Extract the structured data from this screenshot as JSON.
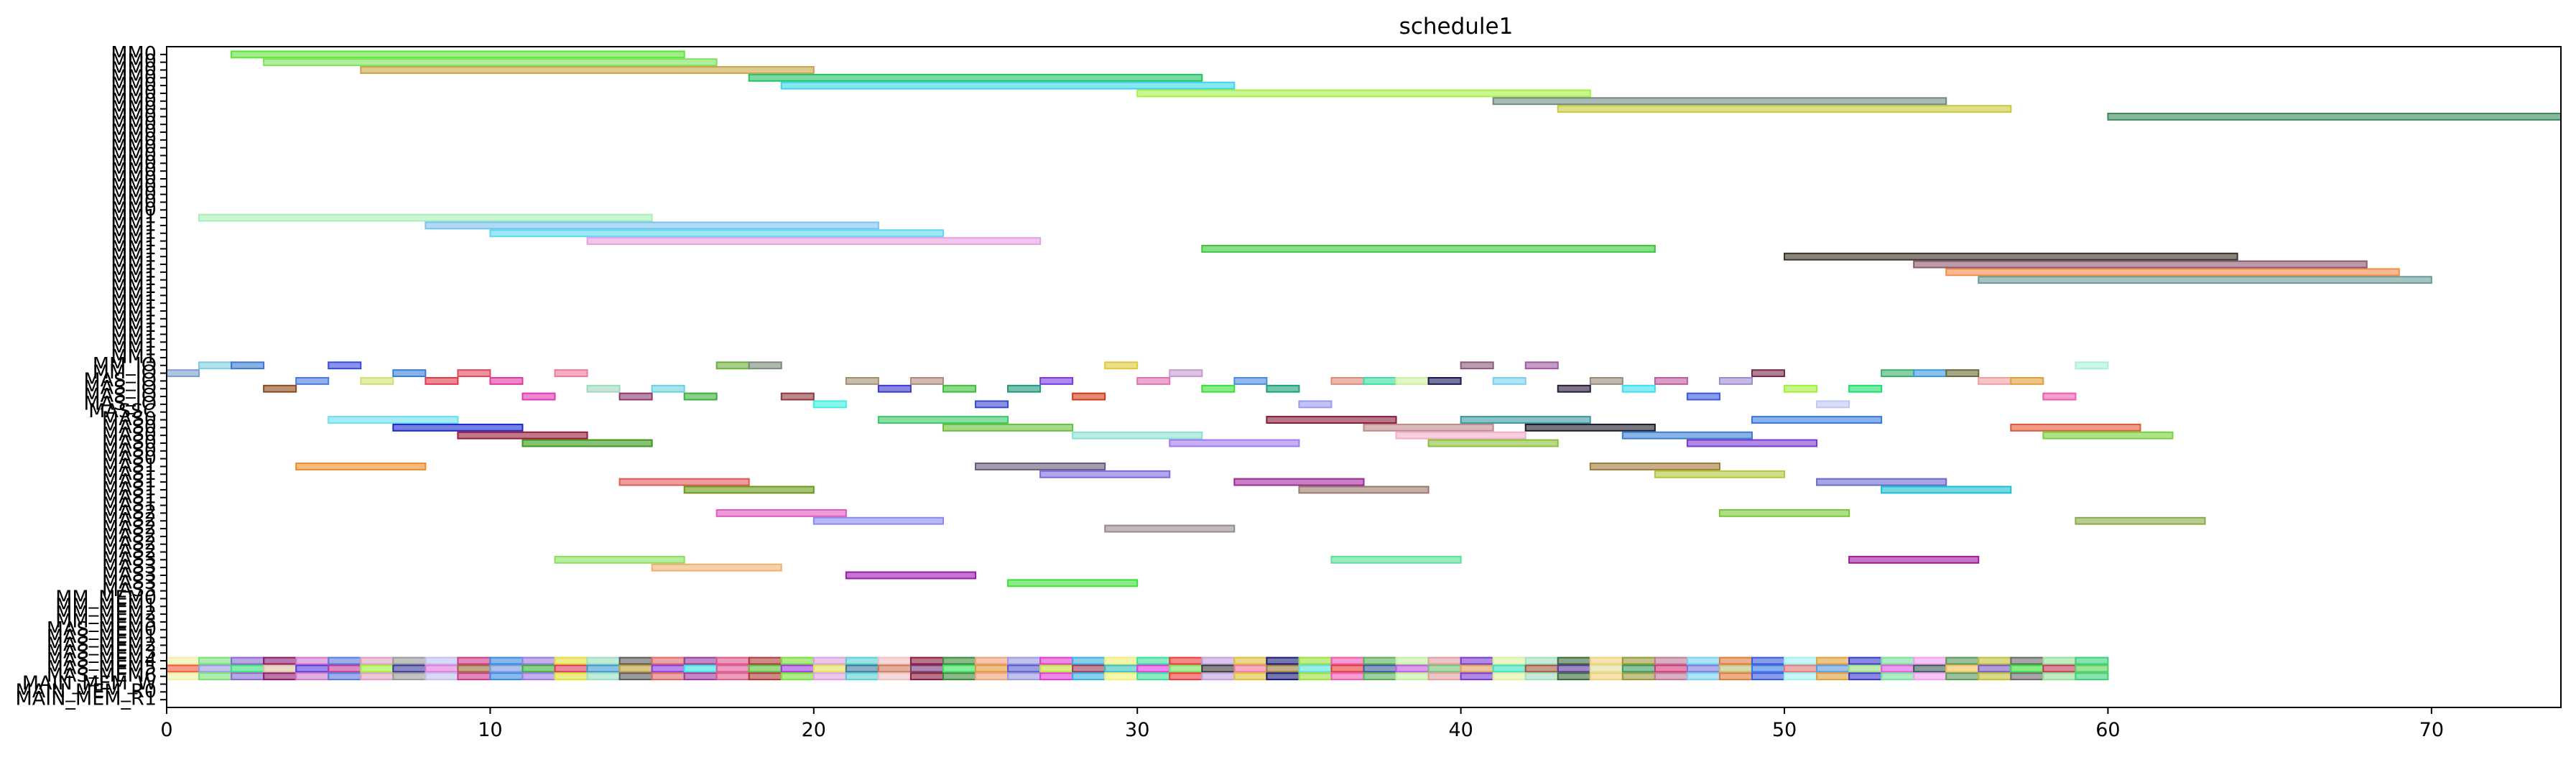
{
  "chart_data": {
    "type": "gantt",
    "title": "schedule1",
    "xlim": [
      0,
      74
    ],
    "xticks": [
      0,
      10,
      20,
      30,
      40,
      50,
      60,
      70
    ],
    "grid": false,
    "rows": [
      "MM0",
      "MM0",
      "MM0",
      "MM0",
      "MM0",
      "MM0",
      "MM0",
      "MM0",
      "MM0",
      "MM0",
      "MM0",
      "MM0",
      "MM0",
      "MM0",
      "MM0",
      "MM0",
      "MM0",
      "MM0",
      "MM0",
      "MM0",
      "MM0",
      "MM1",
      "MM1",
      "MM1",
      "MM1",
      "MM1",
      "MM1",
      "MM1",
      "MM1",
      "MM1",
      "MM1",
      "MM1",
      "MM1",
      "MM1",
      "MM1",
      "MM1",
      "MM1",
      "MM1",
      "MM1",
      "MM1",
      "MM_IO",
      "MM_IO",
      "MAS_IO",
      "MAS_IO",
      "MAS_IO",
      "MAS_IO",
      "MASSC",
      "MAS0",
      "MAS0",
      "MAS0",
      "MAS0",
      "MAS0",
      "MAS0",
      "MAS1",
      "MAS1",
      "MAS1",
      "MAS1",
      "MAS1",
      "MAS1",
      "MAS2",
      "MAS2",
      "MAS2",
      "MAS2",
      "MAS2",
      "MAS2",
      "MAS3",
      "MAS3",
      "MAS3",
      "MAS3",
      "MAS3",
      "MM_MEM0",
      "MM_MEM1",
      "MM_MEM2",
      "MM_MEM3",
      "MAS_MEM0",
      "MAS_MEM1",
      "MAS_MEM2",
      "MAS_MEM3",
      "MAS_MEM4",
      "MAS_MEM5",
      "MAS_MEM6",
      "MAIN_MEM_W",
      "MAIN_MEM_R0",
      "MAIN_MEM_R1"
    ],
    "tasks": [
      {
        "row": 0,
        "start": 2,
        "end": 16,
        "color": "#5ee33a"
      },
      {
        "row": 1,
        "start": 3,
        "end": 17,
        "color": "#7de35a"
      },
      {
        "row": 2,
        "start": 6,
        "end": 20,
        "color": "#c9a54a"
      },
      {
        "row": 3,
        "start": 18,
        "end": 32,
        "color": "#22c265"
      },
      {
        "row": 4,
        "start": 19,
        "end": 33,
        "color": "#3ad6e8"
      },
      {
        "row": 5,
        "start": 30,
        "end": 44,
        "color": "#a7f046"
      },
      {
        "row": 6,
        "start": 41,
        "end": 55,
        "color": "#6f8a84"
      },
      {
        "row": 7,
        "start": 43,
        "end": 57,
        "color": "#c8c93a"
      },
      {
        "row": 8,
        "start": 60,
        "end": 74,
        "color": "#3a8b5a"
      },
      {
        "row": 21,
        "start": 1,
        "end": 15,
        "color": "#a9f0b8"
      },
      {
        "row": 22,
        "start": 8,
        "end": 22,
        "color": "#7cc2f0"
      },
      {
        "row": 23,
        "start": 10,
        "end": 24,
        "color": "#5ed8f0"
      },
      {
        "row": 24,
        "start": 13,
        "end": 27,
        "color": "#e8a0e0"
      },
      {
        "row": 25,
        "start": 32,
        "end": 46,
        "color": "#3ac93a"
      },
      {
        "row": 26,
        "start": 50,
        "end": 64,
        "color": "#3a3426"
      },
      {
        "row": 27,
        "start": 54,
        "end": 68,
        "color": "#8a5a72"
      },
      {
        "row": 28,
        "start": 55,
        "end": 69,
        "color": "#f58a4a"
      },
      {
        "row": 29,
        "start": 56,
        "end": 70,
        "color": "#6a9a98"
      },
      {
        "row": 40,
        "start": 1,
        "end": 2,
        "color": "#7dcfe0"
      },
      {
        "row": 40,
        "start": 2,
        "end": 3,
        "color": "#3a7ad0"
      },
      {
        "row": 40,
        "start": 5,
        "end": 6,
        "color": "#3a4ae0"
      },
      {
        "row": 40,
        "start": 17,
        "end": 18,
        "color": "#6ab03a"
      },
      {
        "row": 40,
        "start": 18,
        "end": 19,
        "color": "#7a8a7a"
      },
      {
        "row": 40,
        "start": 29,
        "end": 30,
        "color": "#e0c83a"
      },
      {
        "row": 40,
        "start": 40,
        "end": 41,
        "color": "#8a5a7a"
      },
      {
        "row": 40,
        "start": 42,
        "end": 43,
        "color": "#a05aa0"
      },
      {
        "row": 40,
        "start": 59,
        "end": 60,
        "color": "#a8f0d8"
      },
      {
        "row": 41,
        "start": 0,
        "end": 1,
        "color": "#7aa0d0"
      },
      {
        "row": 41,
        "start": 7,
        "end": 8,
        "color": "#3a80d8"
      },
      {
        "row": 41,
        "start": 9,
        "end": 10,
        "color": "#e04a5a"
      },
      {
        "row": 41,
        "start": 12,
        "end": 13,
        "color": "#f07a9a"
      },
      {
        "row": 41,
        "start": 31,
        "end": 32,
        "color": "#c89ad0"
      },
      {
        "row": 41,
        "start": 49,
        "end": 50,
        "color": "#7a2a4a"
      },
      {
        "row": 41,
        "start": 53,
        "end": 54,
        "color": "#3ab06a"
      },
      {
        "row": 41,
        "start": 54,
        "end": 55,
        "color": "#3a9ae0"
      },
      {
        "row": 41,
        "start": 55,
        "end": 56,
        "color": "#6a6a3a"
      },
      {
        "row": 42,
        "start": 4,
        "end": 5,
        "color": "#4a7ae0"
      },
      {
        "row": 42,
        "start": 6,
        "end": 7,
        "color": "#d0e070"
      },
      {
        "row": 42,
        "start": 8,
        "end": 9,
        "color": "#e03a4a"
      },
      {
        "row": 42,
        "start": 10,
        "end": 11,
        "color": "#e03aa0"
      },
      {
        "row": 42,
        "start": 21,
        "end": 22,
        "color": "#a09070"
      },
      {
        "row": 42,
        "start": 23,
        "end": 24,
        "color": "#b08a7a"
      },
      {
        "row": 42,
        "start": 27,
        "end": 28,
        "color": "#7a3ae0"
      },
      {
        "row": 42,
        "start": 30,
        "end": 31,
        "color": "#e070b0"
      },
      {
        "row": 42,
        "start": 33,
        "end": 34,
        "color": "#4a8ae0"
      },
      {
        "row": 42,
        "start": 36,
        "end": 37,
        "color": "#e08a7a"
      },
      {
        "row": 42,
        "start": 37,
        "end": 38,
        "color": "#3ae0a0"
      },
      {
        "row": 42,
        "start": 38,
        "end": 39,
        "color": "#d0f0a0"
      },
      {
        "row": 42,
        "start": 39,
        "end": 40,
        "color": "#1a1a5a"
      },
      {
        "row": 42,
        "start": 41,
        "end": 42,
        "color": "#7ad0f0"
      },
      {
        "row": 42,
        "start": 44,
        "end": 45,
        "color": "#9a8a7a"
      },
      {
        "row": 42,
        "start": 46,
        "end": 47,
        "color": "#c05aa0"
      },
      {
        "row": 42,
        "start": 48,
        "end": 49,
        "color": "#a08ad0"
      },
      {
        "row": 42,
        "start": 56,
        "end": 57,
        "color": "#f0a0a0"
      },
      {
        "row": 42,
        "start": 57,
        "end": 58,
        "color": "#e0a03a"
      },
      {
        "row": 43,
        "start": 3,
        "end": 4,
        "color": "#8a4a1a"
      },
      {
        "row": 43,
        "start": 13,
        "end": 14,
        "color": "#a0d8c0"
      },
      {
        "row": 43,
        "start": 15,
        "end": 16,
        "color": "#6ad0e0"
      },
      {
        "row": 43,
        "start": 22,
        "end": 23,
        "color": "#3a3ad0"
      },
      {
        "row": 43,
        "start": 24,
        "end": 25,
        "color": "#3ac03a"
      },
      {
        "row": 43,
        "start": 26,
        "end": 27,
        "color": "#1a9a7a"
      },
      {
        "row": 43,
        "start": 32,
        "end": 33,
        "color": "#3ae03a"
      },
      {
        "row": 43,
        "start": 34,
        "end": 35,
        "color": "#1aa07a"
      },
      {
        "row": 43,
        "start": 43,
        "end": 44,
        "color": "#2a1a3a"
      },
      {
        "row": 43,
        "start": 45,
        "end": 46,
        "color": "#3ae0f0"
      },
      {
        "row": 43,
        "start": 50,
        "end": 51,
        "color": "#a0f03a"
      },
      {
        "row": 43,
        "start": 52,
        "end": 53,
        "color": "#1ae06a"
      },
      {
        "row": 44,
        "start": 11,
        "end": 12,
        "color": "#e03ab0"
      },
      {
        "row": 44,
        "start": 14,
        "end": 15,
        "color": "#8a3a6a"
      },
      {
        "row": 44,
        "start": 16,
        "end": 17,
        "color": "#3ab03a"
      },
      {
        "row": 44,
        "start": 19,
        "end": 20,
        "color": "#8a3a3a"
      },
      {
        "row": 44,
        "start": 28,
        "end": 29,
        "color": "#d03a1a"
      },
      {
        "row": 44,
        "start": 47,
        "end": 48,
        "color": "#3a5ae0"
      },
      {
        "row": 44,
        "start": 58,
        "end": 59,
        "color": "#f05ab0"
      },
      {
        "row": 45,
        "start": 20,
        "end": 21,
        "color": "#3af0e0"
      },
      {
        "row": 45,
        "start": 25,
        "end": 26,
        "color": "#3a4ad0"
      },
      {
        "row": 45,
        "start": 35,
        "end": 36,
        "color": "#9a9af0"
      },
      {
        "row": 45,
        "start": 51,
        "end": 52,
        "color": "#c0c8f0"
      },
      {
        "row": 47,
        "start": 5,
        "end": 9,
        "color": "#6ae0f0"
      },
      {
        "row": 47,
        "start": 22,
        "end": 26,
        "color": "#3ac86a"
      },
      {
        "row": 47,
        "start": 34,
        "end": 38,
        "color": "#8a1a3a"
      },
      {
        "row": 47,
        "start": 40,
        "end": 44,
        "color": "#3a9aa0"
      },
      {
        "row": 47,
        "start": 49,
        "end": 53,
        "color": "#3a7ae0"
      },
      {
        "row": 48,
        "start": 7,
        "end": 11,
        "color": "#1a2ad0"
      },
      {
        "row": 48,
        "start": 24,
        "end": 28,
        "color": "#6ac03a"
      },
      {
        "row": 48,
        "start": 37,
        "end": 41,
        "color": "#c08a8a"
      },
      {
        "row": 48,
        "start": 42,
        "end": 46,
        "color": "#1a1a2a"
      },
      {
        "row": 48,
        "start": 57,
        "end": 61,
        "color": "#e05a3a"
      },
      {
        "row": 49,
        "start": 9,
        "end": 13,
        "color": "#9a1a3a"
      },
      {
        "row": 49,
        "start": 28,
        "end": 32,
        "color": "#8ae0d0"
      },
      {
        "row": 49,
        "start": 38,
        "end": 42,
        "color": "#f0b0c8"
      },
      {
        "row": 49,
        "start": 45,
        "end": 49,
        "color": "#3a80d0"
      },
      {
        "row": 49,
        "start": 58,
        "end": 62,
        "color": "#7ad03a"
      },
      {
        "row": 50,
        "start": 11,
        "end": 15,
        "color": "#3a9a1a"
      },
      {
        "row": 50,
        "start": 31,
        "end": 35,
        "color": "#a07af0"
      },
      {
        "row": 50,
        "start": 39,
        "end": 43,
        "color": "#8ac03a"
      },
      {
        "row": 50,
        "start": 47,
        "end": 51,
        "color": "#7a3ad0"
      },
      {
        "row": 53,
        "start": 4,
        "end": 8,
        "color": "#f08a2a"
      },
      {
        "row": 53,
        "start": 25,
        "end": 29,
        "color": "#6a5a7a"
      },
      {
        "row": 53,
        "start": 44,
        "end": 48,
        "color": "#a07a3a"
      },
      {
        "row": 54,
        "start": 27,
        "end": 31,
        "color": "#7a6ae0"
      },
      {
        "row": 54,
        "start": 46,
        "end": 50,
        "color": "#b0c83a"
      },
      {
        "row": 55,
        "start": 14,
        "end": 18,
        "color": "#e05a5a"
      },
      {
        "row": 55,
        "start": 33,
        "end": 37,
        "color": "#a02a9a"
      },
      {
        "row": 55,
        "start": 51,
        "end": 55,
        "color": "#6a6ad0"
      },
      {
        "row": 56,
        "start": 16,
        "end": 20,
        "color": "#6a9a1a"
      },
      {
        "row": 56,
        "start": 35,
        "end": 39,
        "color": "#9a7a6a"
      },
      {
        "row": 56,
        "start": 53,
        "end": 57,
        "color": "#1ac0d0"
      },
      {
        "row": 59,
        "start": 17,
        "end": 21,
        "color": "#e05ac0"
      },
      {
        "row": 59,
        "start": 48,
        "end": 52,
        "color": "#7ac83a"
      },
      {
        "row": 60,
        "start": 20,
        "end": 24,
        "color": "#8a8af0"
      },
      {
        "row": 60,
        "start": 59,
        "end": 63,
        "color": "#8aaa4a"
      },
      {
        "row": 61,
        "start": 29,
        "end": 33,
        "color": "#9a8a8a"
      },
      {
        "row": 65,
        "start": 12,
        "end": 16,
        "color": "#8ae05a"
      },
      {
        "row": 65,
        "start": 36,
        "end": 40,
        "color": "#5ae09a"
      },
      {
        "row": 65,
        "start": 52,
        "end": 56,
        "color": "#a01a9a"
      },
      {
        "row": 66,
        "start": 15,
        "end": 19,
        "color": "#f0b070"
      },
      {
        "row": 67,
        "start": 21,
        "end": 25,
        "color": "#9a1ab0"
      },
      {
        "row": 68,
        "start": 26,
        "end": 30,
        "color": "#3ae03a"
      }
    ],
    "main_mem": {
      "rows": [
        78,
        79,
        80
      ],
      "start": 0,
      "end": 60,
      "palettes": [
        [
          "#f0f0a0",
          "#7ae07a",
          "#8a6ad0",
          "#8a1a6a",
          "#d07ad0",
          "#5a7ae0",
          "#e0a0c0",
          "#9a9a9a",
          "#c0c0f0",
          "#d03a8a",
          "#3a8ae0",
          "#9a7ae0",
          "#e0e03a",
          "#9ae0c0",
          "#5a5a5a",
          "#e06a6a",
          "#9a3a9a",
          "#e05a8a",
          "#b03a3a",
          "#7ae03a",
          "#e0a0e0",
          "#5ad0d0",
          "#f0c0c0",
          "#8a1a3a",
          "#3a8a3a",
          "#f0a07a",
          "#9a9ae0",
          "#e03ad0",
          "#3ab0e0",
          "#f0f07a",
          "#3ae09a",
          "#f03a3a",
          "#c0a0e0",
          "#e0c03a",
          "#1a1a7a",
          "#9ae03a",
          "#f05ab0",
          "#5ab05a",
          "#c0f0a0",
          "#e0a0a0",
          "#7a3ad0",
          "#e0f0a0",
          "#a0e0c0",
          "#3a6a3a",
          "#f0d07a",
          "#9a9a3a",
          "#c07a9a",
          "#7ad0f0",
          "#e07a3a",
          "#3a5ae0",
          "#a0f0f0",
          "#e0a03a",
          "#3a3ad0",
          "#7ae0a0",
          "#f0a0f0",
          "#5a9a5a",
          "#c0c03a",
          "#6a6a6a",
          "#9ae09a",
          "#3ad07a"
        ],
        [
          "#f05a3a",
          "#9a9ae0",
          "#3ae07a",
          "#e0c0a0",
          "#5a3ae0",
          "#c03a9a",
          "#a0f03a",
          "#3a3a9a",
          "#e07ae0",
          "#9a6a3a",
          "#7a9ae0",
          "#3ab03a",
          "#e03a5a",
          "#3a9ad0",
          "#c0a03a",
          "#8a3ae0",
          "#3ae0e0",
          "#e05a9a",
          "#5ac03a",
          "#a03ae0",
          "#e0e05a",
          "#3a7a9a",
          "#d07a5a",
          "#7a3a7a",
          "#3ae05a",
          "#e09a3a",
          "#5a5ad0",
          "#c0e03a",
          "#9a3a5a",
          "#3ac0c0",
          "#e03ae0",
          "#7ae05a",
          "#3a3a3a",
          "#f07a9a",
          "#9a7a3a",
          "#5ae0e0",
          "#e03a3a",
          "#3a5a9a",
          "#c05ae0",
          "#7ac07a",
          "#e0a05a",
          "#3ae0c0",
          "#a05a3a",
          "#5a3a9a",
          "#e0e0a0",
          "#3a9a5a",
          "#d03a7a",
          "#7a7ae0",
          "#c0c07a",
          "#3a7ae0",
          "#e07a7a",
          "#5a9ae0",
          "#9ae07a",
          "#e05ae0",
          "#3a5a5a",
          "#f0c05a",
          "#7a5ac0",
          "#3ae03a",
          "#c03a5a",
          "#5ad05a"
        ]
      ]
    }
  }
}
